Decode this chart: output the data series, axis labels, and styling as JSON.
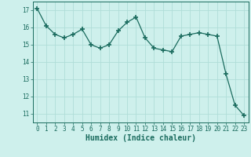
{
  "x": [
    0,
    1,
    2,
    3,
    4,
    5,
    6,
    7,
    8,
    9,
    10,
    11,
    12,
    13,
    14,
    15,
    16,
    17,
    18,
    19,
    20,
    21,
    22,
    23
  ],
  "y": [
    17.1,
    16.1,
    15.6,
    15.4,
    15.6,
    15.9,
    15.0,
    14.8,
    15.0,
    15.8,
    16.3,
    16.6,
    15.4,
    14.8,
    14.7,
    14.6,
    15.5,
    15.6,
    15.7,
    15.6,
    15.5,
    13.3,
    11.5,
    10.9
  ],
  "line_color": "#1a6b5e",
  "marker": "+",
  "markersize": 4,
  "markeredgewidth": 1.2,
  "bg_color": "#cef0ec",
  "grid_color": "#b0ddd8",
  "xlabel": "Humidex (Indice chaleur)",
  "xlim": [
    -0.5,
    23.5
  ],
  "ylim": [
    10.5,
    17.5
  ],
  "yticks": [
    11,
    12,
    13,
    14,
    15,
    16,
    17
  ],
  "xticks": [
    0,
    1,
    2,
    3,
    4,
    5,
    6,
    7,
    8,
    9,
    10,
    11,
    12,
    13,
    14,
    15,
    16,
    17,
    18,
    19,
    20,
    21,
    22,
    23
  ],
  "tick_fontsize": 5.5,
  "xlabel_fontsize": 7.0
}
